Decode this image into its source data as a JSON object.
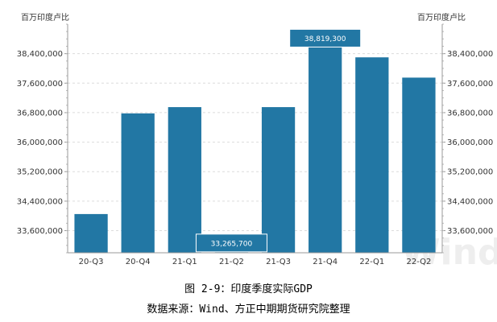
{
  "chart_data": {
    "type": "bar",
    "unit_label_left": "百万印度卢比",
    "unit_label_right": "百万印度卢比",
    "categories": [
      "20-Q3",
      "20-Q4",
      "21-Q1",
      "21-Q2",
      "21-Q3",
      "21-Q4",
      "22-Q1",
      "22-Q2"
    ],
    "values": [
      34050000,
      36780000,
      36950000,
      33265700,
      36950000,
      38819300,
      38300000,
      37750000
    ],
    "ylim": [
      33000000,
      39200000
    ],
    "yticks": [
      "33,600,000",
      "34,400,000",
      "35,200,000",
      "36,000,000",
      "36,800,000",
      "37,600,000",
      "38,400,000"
    ],
    "ytick_values": [
      33600000,
      34400000,
      35200000,
      36000000,
      36800000,
      37600000,
      38400000
    ],
    "annotations": [
      {
        "category": "21-Q2",
        "text": "33,265,700"
      },
      {
        "category": "21-Q4",
        "text": "38,819,300"
      }
    ],
    "grid": true,
    "bar_color": "#2277a4",
    "watermark": "Wind"
  },
  "caption": {
    "title": "图 2-9：印度季度实际GDP",
    "source": "数据来源：Wind、方正中期期货研究院整理"
  }
}
